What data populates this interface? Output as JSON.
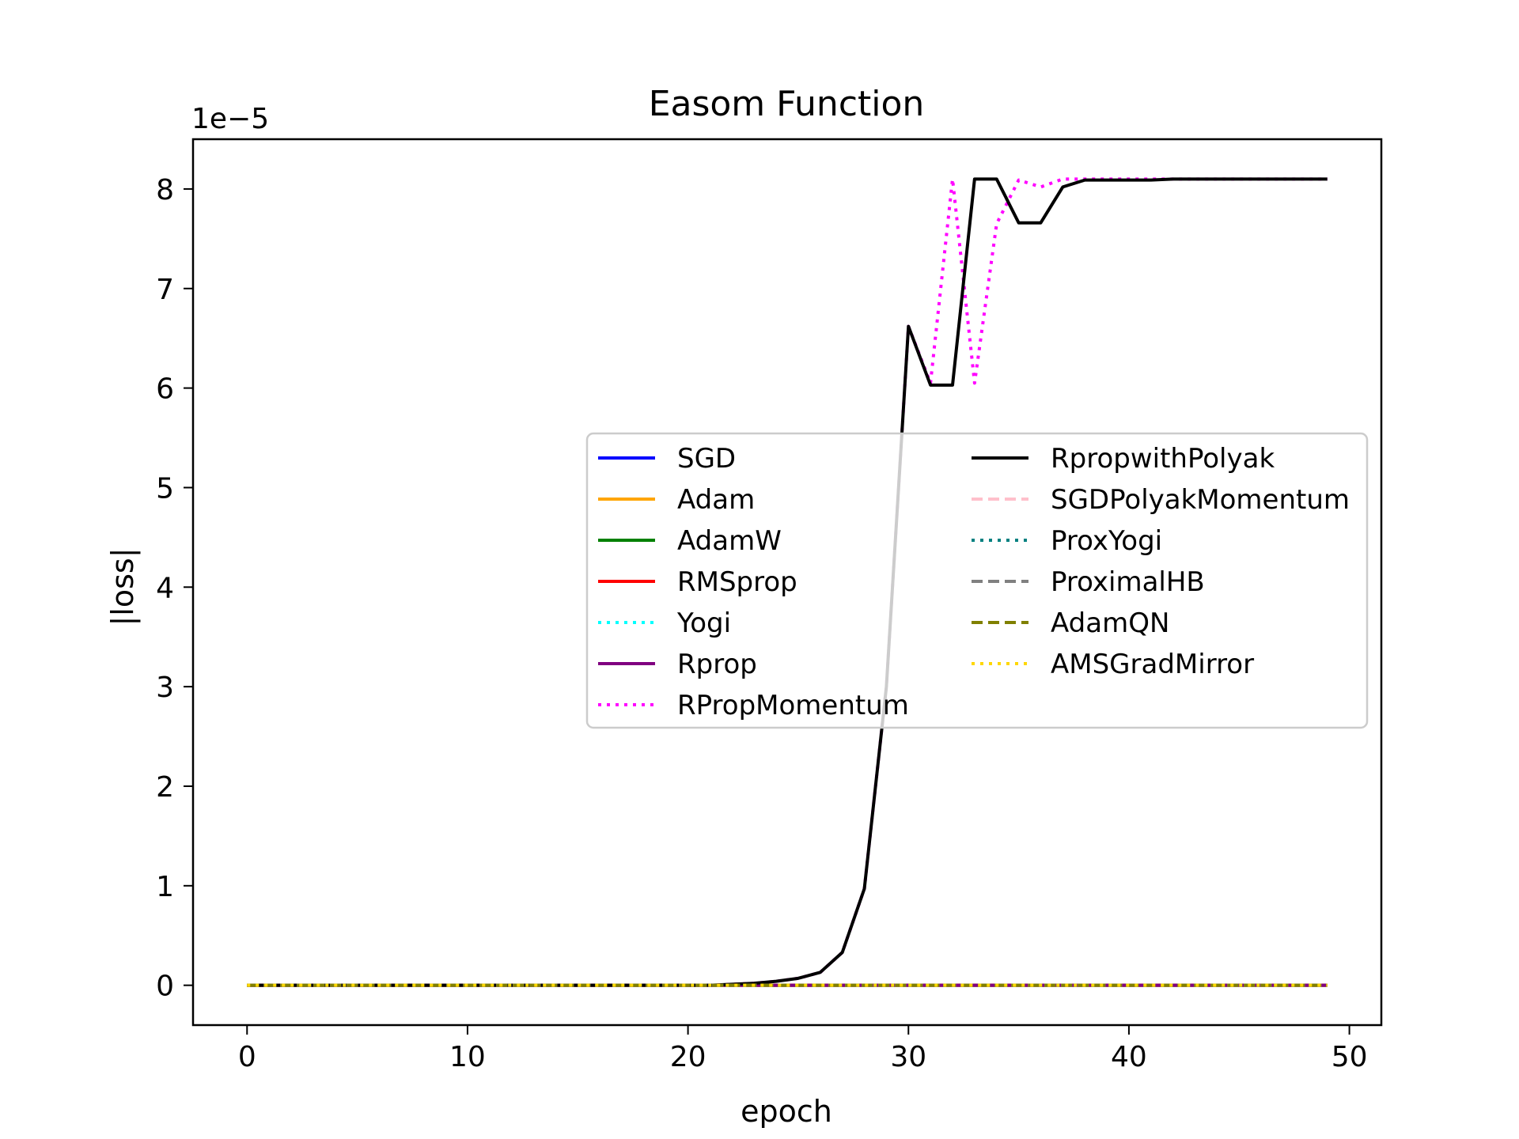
{
  "chart_data": {
    "type": "line",
    "title": "Easom Function",
    "xlabel": "epoch",
    "ylabel": "|loss|",
    "y_scale_label": "1e−5",
    "y_multiplier": 1e-05,
    "xlim": [
      -2.45,
      51.45
    ],
    "ylim": [
      -0.4,
      8.5
    ],
    "x_ticks": [
      0,
      10,
      20,
      30,
      40,
      50
    ],
    "y_ticks": [
      0,
      1,
      2,
      3,
      4,
      5,
      6,
      7,
      8
    ],
    "grid": false,
    "legend_placement": "center-right",
    "x": [
      0,
      1,
      2,
      3,
      4,
      5,
      6,
      7,
      8,
      9,
      10,
      11,
      12,
      13,
      14,
      15,
      16,
      17,
      18,
      19,
      20,
      21,
      22,
      23,
      24,
      25,
      26,
      27,
      28,
      29,
      30,
      31,
      32,
      33,
      34,
      35,
      36,
      37,
      38,
      39,
      40,
      41,
      42,
      43,
      44,
      45,
      46,
      47,
      48,
      49
    ],
    "series": [
      {
        "name": "SGD",
        "color": "#0000ff",
        "dash": "solid",
        "values": [
          0,
          0,
          0,
          0,
          0,
          0,
          0,
          0,
          0,
          0,
          0,
          0,
          0,
          0,
          0,
          0,
          0,
          0,
          0,
          0,
          0,
          0,
          0,
          0,
          0,
          0,
          0,
          0,
          0,
          0,
          0,
          0,
          0,
          0,
          0,
          0,
          0,
          0,
          0,
          0,
          0,
          0,
          0,
          0,
          0,
          0,
          0,
          0,
          0,
          0
        ]
      },
      {
        "name": "Adam",
        "color": "#ffa500",
        "dash": "solid",
        "values": [
          0,
          0,
          0,
          0,
          0,
          0,
          0,
          0,
          0,
          0,
          0,
          0,
          0,
          0,
          0,
          0,
          0,
          0,
          0,
          0,
          0,
          0,
          0,
          0,
          0,
          0,
          0,
          0,
          0,
          0,
          0,
          0,
          0,
          0,
          0,
          0,
          0,
          0,
          0,
          0,
          0,
          0,
          0,
          0,
          0,
          0,
          0,
          0,
          0,
          0
        ]
      },
      {
        "name": "AdamW",
        "color": "#008000",
        "dash": "solid",
        "values": [
          0,
          0,
          0,
          0,
          0,
          0,
          0,
          0,
          0,
          0,
          0,
          0,
          0,
          0,
          0,
          0,
          0,
          0,
          0,
          0,
          0,
          0,
          0,
          0,
          0,
          0,
          0,
          0,
          0,
          0,
          0,
          0,
          0,
          0,
          0,
          0,
          0,
          0,
          0,
          0,
          0,
          0,
          0,
          0,
          0,
          0,
          0,
          0,
          0,
          0
        ]
      },
      {
        "name": "RMSprop",
        "color": "#ff0000",
        "dash": "solid",
        "values": [
          0,
          0,
          0,
          0,
          0,
          0,
          0,
          0,
          0,
          0,
          0,
          0,
          0,
          0,
          0,
          0,
          0,
          0,
          0,
          0,
          0,
          0,
          0,
          0,
          0,
          0,
          0,
          0,
          0,
          0,
          0,
          0,
          0,
          0,
          0,
          0,
          0,
          0,
          0,
          0,
          0,
          0,
          0,
          0,
          0,
          0,
          0,
          0,
          0,
          0
        ]
      },
      {
        "name": "Yogi",
        "color": "#00ffff",
        "dash": "dotted",
        "values": [
          0,
          0,
          0,
          0,
          0,
          0,
          0,
          0,
          0,
          0,
          0,
          0,
          0,
          0,
          0,
          0,
          0,
          0,
          0,
          0,
          0,
          0,
          0,
          0,
          0,
          0,
          0,
          0,
          0,
          0,
          0,
          0,
          0,
          0,
          0,
          0,
          0,
          0,
          0,
          0,
          0,
          0,
          0,
          0,
          0,
          0,
          0,
          0,
          0,
          0
        ]
      },
      {
        "name": "Rprop",
        "color": "#800080",
        "dash": "solid",
        "values": [
          0,
          0,
          0,
          0,
          0,
          0,
          0,
          0,
          0,
          0,
          0,
          0,
          0,
          0,
          0,
          0,
          0,
          0,
          0,
          0,
          0,
          0,
          0,
          0,
          0,
          0,
          0,
          0,
          0,
          0,
          0,
          0,
          0,
          0,
          0,
          0,
          0,
          0,
          0,
          0,
          0,
          0,
          0,
          0,
          0,
          0,
          0,
          0,
          0,
          0
        ]
      },
      {
        "name": "RPropMomentum",
        "color": "#ff00ff",
        "dash": "dotted",
        "values": [
          0,
          0,
          0,
          0,
          0,
          0,
          0,
          0,
          0,
          0,
          0,
          0,
          0,
          0,
          0,
          0,
          0,
          0,
          0,
          0,
          0,
          0,
          0.01,
          0.02,
          0.04,
          0.07,
          0.13,
          0.33,
          0.97,
          3.0,
          6.62,
          6.05,
          8.1,
          6.05,
          7.65,
          8.09,
          8.02,
          8.1,
          8.1,
          8.1,
          8.1,
          8.1,
          8.1,
          8.1,
          8.1,
          8.1,
          8.1,
          8.1,
          8.1,
          8.1
        ]
      },
      {
        "name": "RpropwithPolyak",
        "color": "#000000",
        "dash": "solid",
        "values": [
          0,
          0,
          0,
          0,
          0,
          0,
          0,
          0,
          0,
          0,
          0,
          0,
          0,
          0,
          0,
          0,
          0,
          0,
          0,
          0,
          0,
          0,
          0.01,
          0.02,
          0.04,
          0.07,
          0.13,
          0.33,
          0.97,
          3.0,
          6.62,
          6.03,
          6.03,
          8.1,
          8.1,
          7.66,
          7.66,
          8.02,
          8.09,
          8.09,
          8.09,
          8.09,
          8.1,
          8.1,
          8.1,
          8.1,
          8.1,
          8.1,
          8.1,
          8.1
        ]
      },
      {
        "name": "SGDPolyakMomentum",
        "color": "#ffc0cb",
        "dash": "dashed",
        "values": [
          0,
          0,
          0,
          0,
          0,
          0,
          0,
          0,
          0,
          0,
          0,
          0,
          0,
          0,
          0,
          0,
          0,
          0,
          0,
          0,
          0,
          0,
          0,
          0,
          0,
          0,
          0,
          0,
          0,
          0,
          0,
          0,
          0,
          0,
          0,
          0,
          0,
          0,
          0,
          0,
          0,
          0,
          0,
          0,
          0,
          0,
          0,
          0,
          0,
          0
        ]
      },
      {
        "name": "ProxYogi",
        "color": "#008080",
        "dash": "dotted",
        "values": [
          0,
          0,
          0,
          0,
          0,
          0,
          0,
          0,
          0,
          0,
          0,
          0,
          0,
          0,
          0,
          0,
          0,
          0,
          0,
          0,
          0,
          0,
          0,
          0,
          0,
          0,
          0,
          0,
          0,
          0,
          0,
          0,
          0,
          0,
          0,
          0,
          0,
          0,
          0,
          0,
          0,
          0,
          0,
          0,
          0,
          0,
          0,
          0,
          0,
          0
        ]
      },
      {
        "name": "ProximalHB",
        "color": "#808080",
        "dash": "dashed",
        "values": [
          0,
          0,
          0,
          0,
          0,
          0,
          0,
          0,
          0,
          0,
          0,
          0,
          0,
          0,
          0,
          0,
          0,
          0,
          0,
          0,
          0,
          0,
          0,
          0,
          0,
          0,
          0,
          0,
          0,
          0,
          0,
          0,
          0,
          0,
          0,
          0,
          0,
          0,
          0,
          0,
          0,
          0,
          0,
          0,
          0,
          0,
          0,
          0,
          0,
          0
        ]
      },
      {
        "name": "AdamQN",
        "color": "#808000",
        "dash": "dashed",
        "values": [
          0,
          0,
          0,
          0,
          0,
          0,
          0,
          0,
          0,
          0,
          0,
          0,
          0,
          0,
          0,
          0,
          0,
          0,
          0,
          0,
          0,
          0,
          0,
          0,
          0,
          0,
          0,
          0,
          0,
          0,
          0,
          0,
          0,
          0,
          0,
          0,
          0,
          0,
          0,
          0,
          0,
          0,
          0,
          0,
          0,
          0,
          0,
          0,
          0,
          0
        ]
      },
      {
        "name": "AMSGradMirror",
        "color": "#ffd700",
        "dash": "dotted",
        "values": [
          0,
          0,
          0,
          0,
          0,
          0,
          0,
          0,
          0,
          0,
          0,
          0,
          0,
          0,
          0,
          0,
          0,
          0,
          0,
          0,
          0,
          0,
          0,
          0,
          0,
          0,
          0,
          0,
          0,
          0,
          0,
          0,
          0,
          0,
          0,
          0,
          0,
          0,
          0,
          0,
          0,
          0,
          0,
          0,
          0,
          0,
          0,
          0,
          0,
          0
        ]
      }
    ]
  }
}
